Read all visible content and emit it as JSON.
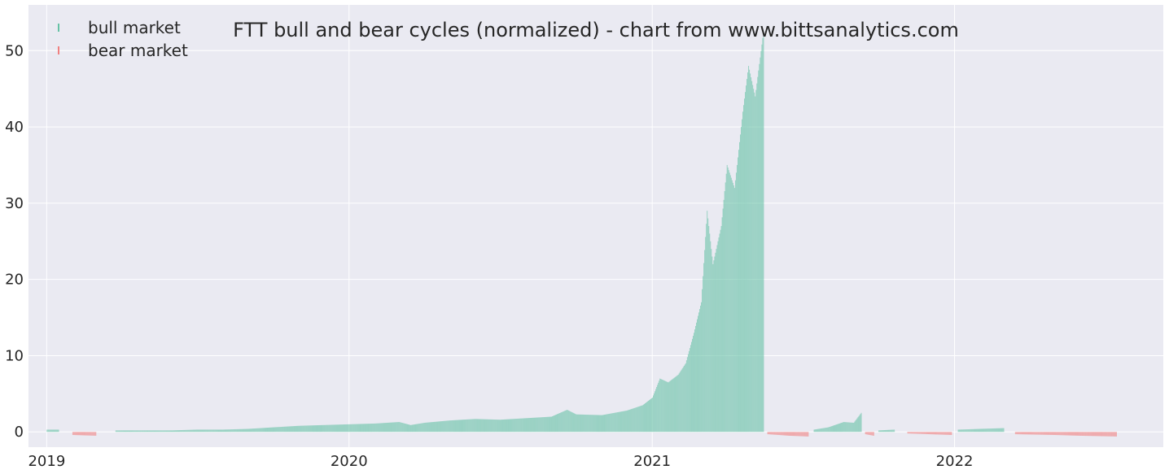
{
  "chart_data": {
    "type": "bar",
    "title": "FTT bull and bear cycles (normalized)  - chart from www.bittsanalytics.com",
    "xlabel": "",
    "ylabel": "",
    "x_range": [
      "2018-12-10",
      "2022-09-10"
    ],
    "ylim": [
      -2,
      56
    ],
    "x_ticks": [
      {
        "date": "2019-01-01",
        "label": "2019"
      },
      {
        "date": "2020-01-01",
        "label": "2020"
      },
      {
        "date": "2021-01-01",
        "label": "2021"
      },
      {
        "date": "2022-01-01",
        "label": "2022"
      }
    ],
    "y_ticks": [
      0,
      10,
      20,
      30,
      40,
      50
    ],
    "grid": true,
    "legend": {
      "position": "top-left",
      "entries": [
        {
          "label": "bull market",
          "color": "#66c2a5"
        },
        {
          "label": "bear market",
          "color": "#f08080"
        }
      ]
    },
    "colors": {
      "bull": "#66c2a5",
      "bear": "#f08080",
      "background": "#eaeaf2",
      "grid": "#ffffff"
    },
    "series": [
      {
        "name": "bull market",
        "kind": "bull",
        "points": [
          [
            "2019-01-01",
            0.3
          ],
          [
            "2019-01-15",
            0.3
          ]
        ]
      },
      {
        "name": "bear market",
        "kind": "bear",
        "points": [
          [
            "2019-02-01",
            -0.4
          ],
          [
            "2019-03-01",
            -0.5
          ]
        ]
      },
      {
        "name": "bull market",
        "kind": "bull",
        "points": [
          [
            "2019-03-25",
            0.2
          ],
          [
            "2019-05-01",
            0.2
          ],
          [
            "2019-06-01",
            0.2
          ],
          [
            "2019-07-01",
            0.3
          ],
          [
            "2019-08-01",
            0.3
          ],
          [
            "2019-09-01",
            0.4
          ],
          [
            "2019-10-01",
            0.6
          ],
          [
            "2019-11-01",
            0.8
          ],
          [
            "2019-12-01",
            0.9
          ],
          [
            "2020-01-01",
            1.0
          ],
          [
            "2020-02-01",
            1.1
          ],
          [
            "2020-03-01",
            1.3
          ],
          [
            "2020-03-15",
            0.9
          ],
          [
            "2020-04-01",
            1.2
          ],
          [
            "2020-05-01",
            1.5
          ],
          [
            "2020-06-01",
            1.7
          ],
          [
            "2020-07-01",
            1.6
          ],
          [
            "2020-08-01",
            1.8
          ],
          [
            "2020-09-01",
            2.0
          ],
          [
            "2020-09-20",
            2.9
          ],
          [
            "2020-10-01",
            2.3
          ],
          [
            "2020-11-01",
            2.2
          ],
          [
            "2020-12-01",
            2.8
          ],
          [
            "2020-12-20",
            3.5
          ],
          [
            "2021-01-01",
            4.5
          ],
          [
            "2021-01-10",
            7.0
          ],
          [
            "2021-01-20",
            6.5
          ],
          [
            "2021-02-01",
            7.5
          ],
          [
            "2021-02-10",
            9.0
          ],
          [
            "2021-02-20",
            13.0
          ],
          [
            "2021-03-01",
            17.0
          ],
          [
            "2021-03-08",
            29.0
          ],
          [
            "2021-03-15",
            22.0
          ],
          [
            "2021-03-25",
            27.0
          ],
          [
            "2021-04-01",
            35.0
          ],
          [
            "2021-04-10",
            32.0
          ],
          [
            "2021-04-20",
            42.0
          ],
          [
            "2021-04-27",
            48.0
          ],
          [
            "2021-05-05",
            44.0
          ],
          [
            "2021-05-15",
            52.5
          ]
        ]
      },
      {
        "name": "bear market",
        "kind": "bear",
        "points": [
          [
            "2021-05-20",
            -0.3
          ],
          [
            "2021-06-15",
            -0.5
          ],
          [
            "2021-07-08",
            -0.6
          ]
        ]
      },
      {
        "name": "bull market",
        "kind": "bull",
        "points": [
          [
            "2021-07-15",
            0.3
          ],
          [
            "2021-08-01",
            0.6
          ],
          [
            "2021-08-20",
            1.3
          ],
          [
            "2021-09-01",
            1.2
          ],
          [
            "2021-09-10",
            2.5
          ]
        ]
      },
      {
        "name": "bear market",
        "kind": "bear",
        "points": [
          [
            "2021-09-15",
            -0.3
          ],
          [
            "2021-09-25",
            -0.5
          ]
        ]
      },
      {
        "name": "bull market",
        "kind": "bull",
        "points": [
          [
            "2021-10-01",
            0.2
          ],
          [
            "2021-10-20",
            0.3
          ]
        ]
      },
      {
        "name": "bear market",
        "kind": "bear",
        "points": [
          [
            "2021-11-05",
            -0.2
          ],
          [
            "2021-12-01",
            -0.3
          ],
          [
            "2021-12-28",
            -0.4
          ]
        ]
      },
      {
        "name": "bull market",
        "kind": "bull",
        "points": [
          [
            "2022-01-05",
            0.3
          ],
          [
            "2022-02-01",
            0.4
          ],
          [
            "2022-03-01",
            0.5
          ]
        ]
      },
      {
        "name": "bear market",
        "kind": "bear",
        "points": [
          [
            "2022-03-15",
            -0.3
          ],
          [
            "2022-05-01",
            -0.4
          ],
          [
            "2022-06-01",
            -0.5
          ],
          [
            "2022-07-15",
            -0.6
          ]
        ]
      }
    ]
  }
}
